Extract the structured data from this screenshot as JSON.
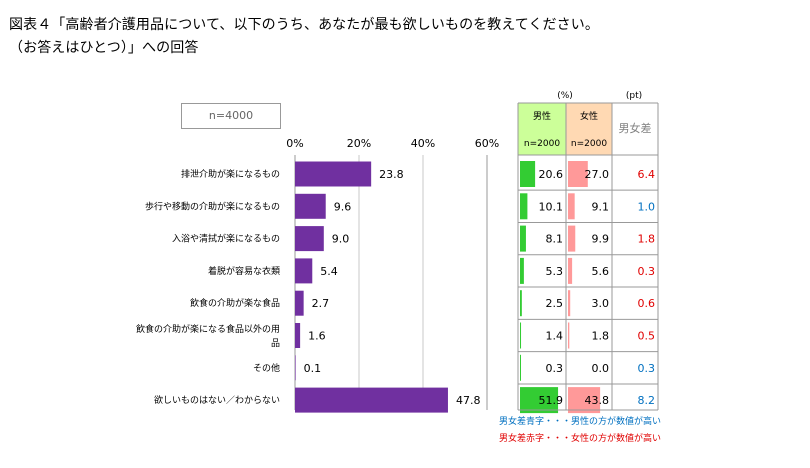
{
  "title": {
    "line1": "図表４「高齢者介護用品について、以下のうち、あなたが最も欲しいものを教えてください。",
    "line2": "（お答えはひとつ）」への回答"
  },
  "sample": "n=4000",
  "chart_data": {
    "type": "bar",
    "orientation": "horizontal",
    "xlim": [
      0,
      60
    ],
    "ticks": [
      "0%",
      "20%",
      "40%",
      "60%"
    ],
    "tick_values": [
      0,
      20,
      40,
      60
    ],
    "bar_color": "#7030a0",
    "categories": [
      [
        "排泄介助が楽になるもの"
      ],
      [
        "歩行や移動の介助が楽になるもの"
      ],
      [
        "入浴や清拭が楽になるもの"
      ],
      [
        "着脱が容易な衣類"
      ],
      [
        "飲食の介助が楽な食品"
      ],
      [
        "飲食の介助が楽になる食品以外の用",
        "品"
      ],
      [
        "その他"
      ],
      [
        "欲しいものはない／わからない"
      ]
    ],
    "values": [
      23.8,
      9.6,
      9.0,
      5.4,
      2.7,
      1.6,
      0.1,
      47.8
    ],
    "value_labels": [
      "23.8",
      "9.6",
      "9.0",
      "5.4",
      "2.7",
      "1.6",
      "0.1",
      "47.8"
    ]
  },
  "table": {
    "unit_pct": "(%)",
    "unit_pt": "(pt)",
    "male_header": "男性",
    "male_n": "n=2000",
    "female_header": "女性",
    "female_n": "n=2000",
    "diff_header": "男女差",
    "male_color": "#33cc33",
    "female_color": "#ff9999",
    "male_header_bg": "#ccff99",
    "female_header_bg": "#ffd9b3",
    "blue": "#0070c0",
    "red": "#e00000",
    "male": [
      20.6,
      10.1,
      8.1,
      5.3,
      2.5,
      1.4,
      0.3,
      51.9
    ],
    "male_labels": [
      "20.6",
      "10.1",
      "8.1",
      "5.3",
      "2.5",
      "1.4",
      "0.3",
      "51.9"
    ],
    "female": [
      27.0,
      9.1,
      9.9,
      5.6,
      3.0,
      1.8,
      0.0,
      43.8
    ],
    "female_labels": [
      "27.0",
      "9.1",
      "9.9",
      "5.6",
      "3.0",
      "1.8",
      "0.0",
      "43.8"
    ],
    "diff_labels": [
      "6.4",
      "1.0",
      "1.8",
      "0.3",
      "0.6",
      "0.5",
      "0.3",
      "8.2"
    ],
    "diff_colors": [
      "red",
      "blue",
      "red",
      "red",
      "red",
      "red",
      "blue",
      "blue"
    ]
  },
  "legend": {
    "blue_text": "男女差青字・・・男性の方が数値が高い",
    "red_text": "男女差赤字・・・女性の方が数値が高い"
  }
}
